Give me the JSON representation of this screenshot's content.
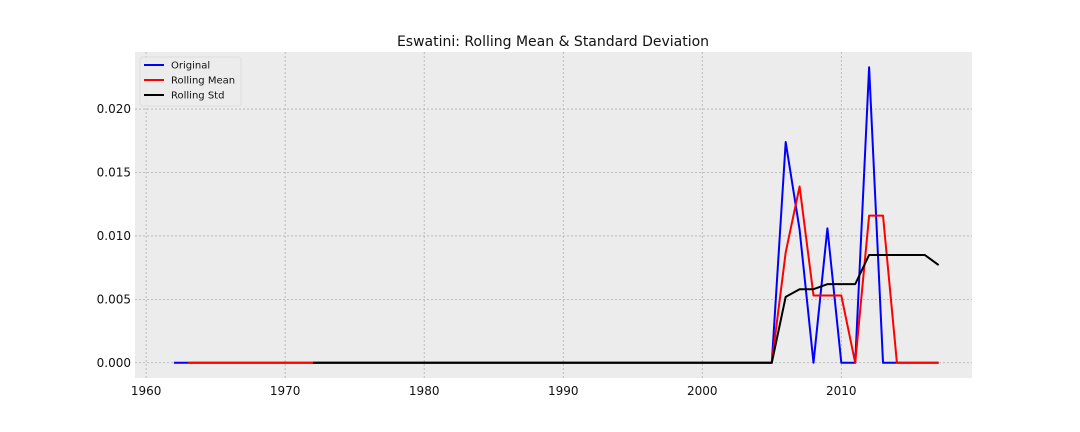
{
  "chart_data": {
    "type": "line",
    "title": "Eswatini: Rolling Mean & Standard Deviation",
    "xlabel": "",
    "ylabel": "",
    "xlim": [
      1959.2,
      2019.4
    ],
    "ylim": [
      -0.0012,
      0.0245
    ],
    "x_ticks": [
      1960,
      1970,
      1980,
      1990,
      2000,
      2010
    ],
    "y_ticks": [
      0.0,
      0.005,
      0.01,
      0.015,
      0.02
    ],
    "x_tick_labels": [
      "1960",
      "1970",
      "1980",
      "1990",
      "2000",
      "2010"
    ],
    "y_tick_labels": [
      "0.000",
      "0.005",
      "0.010",
      "0.015",
      "0.020"
    ],
    "grid": true,
    "legend_position": "top-left",
    "series": [
      {
        "name": "Original",
        "color": "#0000ff",
        "points": [
          [
            1962,
            0
          ],
          [
            1963,
            0
          ],
          [
            1964,
            0
          ],
          [
            1965,
            0
          ],
          [
            1966,
            0
          ],
          [
            1967,
            0
          ],
          [
            1968,
            0
          ],
          [
            1969,
            0
          ],
          [
            1970,
            0
          ],
          [
            1971,
            0
          ],
          [
            1972,
            0
          ],
          [
            1973,
            0
          ],
          [
            1974,
            0
          ],
          [
            1975,
            0
          ],
          [
            1976,
            0
          ],
          [
            1977,
            0
          ],
          [
            1978,
            0
          ],
          [
            1979,
            0
          ],
          [
            1980,
            0
          ],
          [
            1981,
            0
          ],
          [
            1982,
            0
          ],
          [
            1983,
            0
          ],
          [
            1984,
            0
          ],
          [
            1985,
            0
          ],
          [
            1986,
            0
          ],
          [
            1987,
            0
          ],
          [
            1988,
            0
          ],
          [
            1989,
            0
          ],
          [
            1990,
            0
          ],
          [
            1991,
            0
          ],
          [
            1992,
            0
          ],
          [
            1993,
            0
          ],
          [
            1994,
            0
          ],
          [
            1995,
            0
          ],
          [
            1996,
            0
          ],
          [
            1997,
            0
          ],
          [
            1998,
            0
          ],
          [
            1999,
            0
          ],
          [
            2000,
            0
          ],
          [
            2001,
            0
          ],
          [
            2002,
            0
          ],
          [
            2003,
            0
          ],
          [
            2004,
            0
          ],
          [
            2005,
            0
          ],
          [
            2006,
            0.0174
          ],
          [
            2007,
            0.0105
          ],
          [
            2008,
            0.0
          ],
          [
            2009,
            0.0106
          ],
          [
            2010,
            0.0
          ],
          [
            2011,
            0.0
          ],
          [
            2012,
            0.0233
          ],
          [
            2013,
            0.0
          ],
          [
            2014,
            0.0
          ],
          [
            2015,
            0.0
          ],
          [
            2016,
            0.0
          ],
          [
            2017,
            0.0
          ]
        ]
      },
      {
        "name": "Rolling Mean",
        "color": "#ff0000",
        "points": [
          [
            1963,
            0
          ],
          [
            1964,
            0
          ],
          [
            1965,
            0
          ],
          [
            1966,
            0
          ],
          [
            1967,
            0
          ],
          [
            1968,
            0
          ],
          [
            1969,
            0
          ],
          [
            1970,
            0
          ],
          [
            1971,
            0
          ],
          [
            1972,
            0
          ],
          [
            1973,
            0
          ],
          [
            1974,
            0
          ],
          [
            1975,
            0
          ],
          [
            1976,
            0
          ],
          [
            1977,
            0
          ],
          [
            1978,
            0
          ],
          [
            1979,
            0
          ],
          [
            1980,
            0
          ],
          [
            1981,
            0
          ],
          [
            1982,
            0
          ],
          [
            1983,
            0
          ],
          [
            1984,
            0
          ],
          [
            1985,
            0
          ],
          [
            1986,
            0
          ],
          [
            1987,
            0
          ],
          [
            1988,
            0
          ],
          [
            1989,
            0
          ],
          [
            1990,
            0
          ],
          [
            1991,
            0
          ],
          [
            1992,
            0
          ],
          [
            1993,
            0
          ],
          [
            1994,
            0
          ],
          [
            1995,
            0
          ],
          [
            1996,
            0
          ],
          [
            1997,
            0
          ],
          [
            1998,
            0
          ],
          [
            1999,
            0
          ],
          [
            2000,
            0
          ],
          [
            2001,
            0
          ],
          [
            2002,
            0
          ],
          [
            2003,
            0
          ],
          [
            2004,
            0
          ],
          [
            2005,
            0
          ],
          [
            2006,
            0.0087
          ],
          [
            2007,
            0.0139
          ],
          [
            2008,
            0.0053
          ],
          [
            2009,
            0.0053
          ],
          [
            2010,
            0.0053
          ],
          [
            2011,
            0.0
          ],
          [
            2012,
            0.0116
          ],
          [
            2013,
            0.0116
          ],
          [
            2014,
            0.0
          ],
          [
            2015,
            0.0
          ],
          [
            2016,
            0.0
          ],
          [
            2017,
            0.0
          ]
        ]
      },
      {
        "name": "Rolling Std",
        "color": "#000000",
        "points": [
          [
            1972,
            0
          ],
          [
            1973,
            0
          ],
          [
            1974,
            0
          ],
          [
            1975,
            0
          ],
          [
            1976,
            0
          ],
          [
            1977,
            0
          ],
          [
            1978,
            0
          ],
          [
            1979,
            0
          ],
          [
            1980,
            0
          ],
          [
            1981,
            0
          ],
          [
            1982,
            0
          ],
          [
            1983,
            0
          ],
          [
            1984,
            0
          ],
          [
            1985,
            0
          ],
          [
            1986,
            0
          ],
          [
            1987,
            0
          ],
          [
            1988,
            0
          ],
          [
            1989,
            0
          ],
          [
            1990,
            0
          ],
          [
            1991,
            0
          ],
          [
            1992,
            0
          ],
          [
            1993,
            0
          ],
          [
            1994,
            0
          ],
          [
            1995,
            0
          ],
          [
            1996,
            0
          ],
          [
            1997,
            0
          ],
          [
            1998,
            0
          ],
          [
            1999,
            0
          ],
          [
            2000,
            0
          ],
          [
            2001,
            0
          ],
          [
            2002,
            0
          ],
          [
            2003,
            0
          ],
          [
            2004,
            0
          ],
          [
            2005,
            0
          ],
          [
            2006,
            0.0052
          ],
          [
            2007,
            0.0058
          ],
          [
            2008,
            0.0058
          ],
          [
            2009,
            0.0062
          ],
          [
            2010,
            0.0062
          ],
          [
            2011,
            0.0062
          ],
          [
            2012,
            0.0085
          ],
          [
            2013,
            0.0085
          ],
          [
            2014,
            0.0085
          ],
          [
            2015,
            0.0085
          ],
          [
            2016,
            0.0085
          ],
          [
            2017,
            0.0077
          ]
        ]
      }
    ]
  }
}
